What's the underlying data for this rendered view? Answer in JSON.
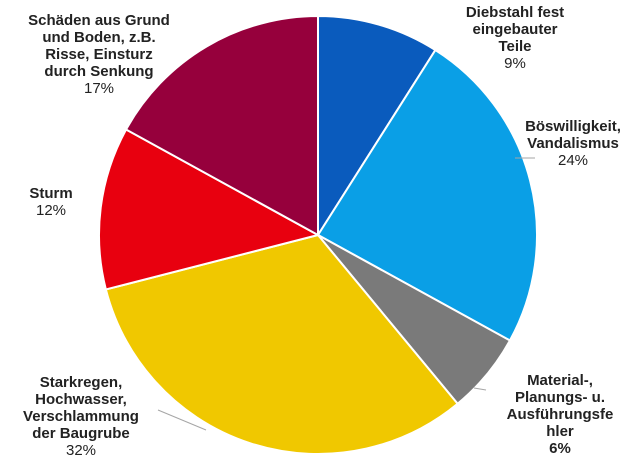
{
  "chart_data": {
    "type": "pie",
    "slices": [
      {
        "label": "Diebstahl fest\neingebauter\nTeile",
        "value": 9,
        "pct": "9%",
        "color": "#0a5bbd"
      },
      {
        "label": "Böswilligkeit,\nVandalismus",
        "value": 24,
        "pct": "24%",
        "color": "#0a9fe6"
      },
      {
        "label": "Material-,\nPlanungs- u.\nAusführungsfe\nhler",
        "value": 6,
        "pct": "6%",
        "color": "#7a7a7a"
      },
      {
        "label": "Starkregen,\nHochwasser,\nVerschlammung\nder Baugrube",
        "value": 32,
        "pct": "32%",
        "color": "#f0c800"
      },
      {
        "label": "Sturm",
        "value": 12,
        "pct": "12%",
        "color": "#e8000f"
      },
      {
        "label": "Schäden aus Grund\nund Boden, z.B.\nRisse, Einsturz\ndurch Senkung",
        "value": 17,
        "pct": "17%",
        "color": "#96003c"
      }
    ]
  }
}
